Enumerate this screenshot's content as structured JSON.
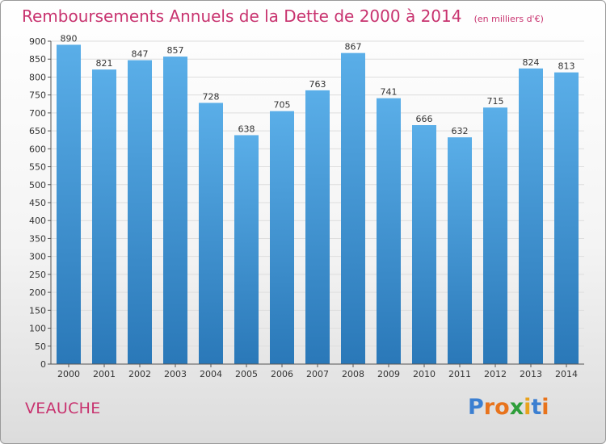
{
  "chart_data": {
    "type": "bar",
    "title": "Remboursements Annuels de la Dette de 2000 à 2014",
    "unit_note": "(en milliers d'€)",
    "categories": [
      "2000",
      "2001",
      "2002",
      "2003",
      "2004",
      "2005",
      "2006",
      "2007",
      "2008",
      "2009",
      "2010",
      "2011",
      "2012",
      "2013",
      "2014"
    ],
    "values": [
      890,
      821,
      847,
      857,
      728,
      638,
      705,
      763,
      867,
      741,
      666,
      632,
      715,
      824,
      813
    ],
    "ylim": [
      0,
      900
    ],
    "yticks": [
      0,
      50,
      100,
      150,
      200,
      250,
      300,
      350,
      400,
      450,
      500,
      550,
      600,
      650,
      700,
      750,
      800,
      850,
      900
    ],
    "grid": true,
    "xlabel": "",
    "ylabel": ""
  },
  "colors": {
    "title": "#c8336f",
    "bar_top": "#5aaee8",
    "bar_bottom": "#2a78b8",
    "grid": "#dddddd"
  },
  "footer": {
    "commune": "VEAUCHE",
    "logo_text": "Proxiti"
  }
}
